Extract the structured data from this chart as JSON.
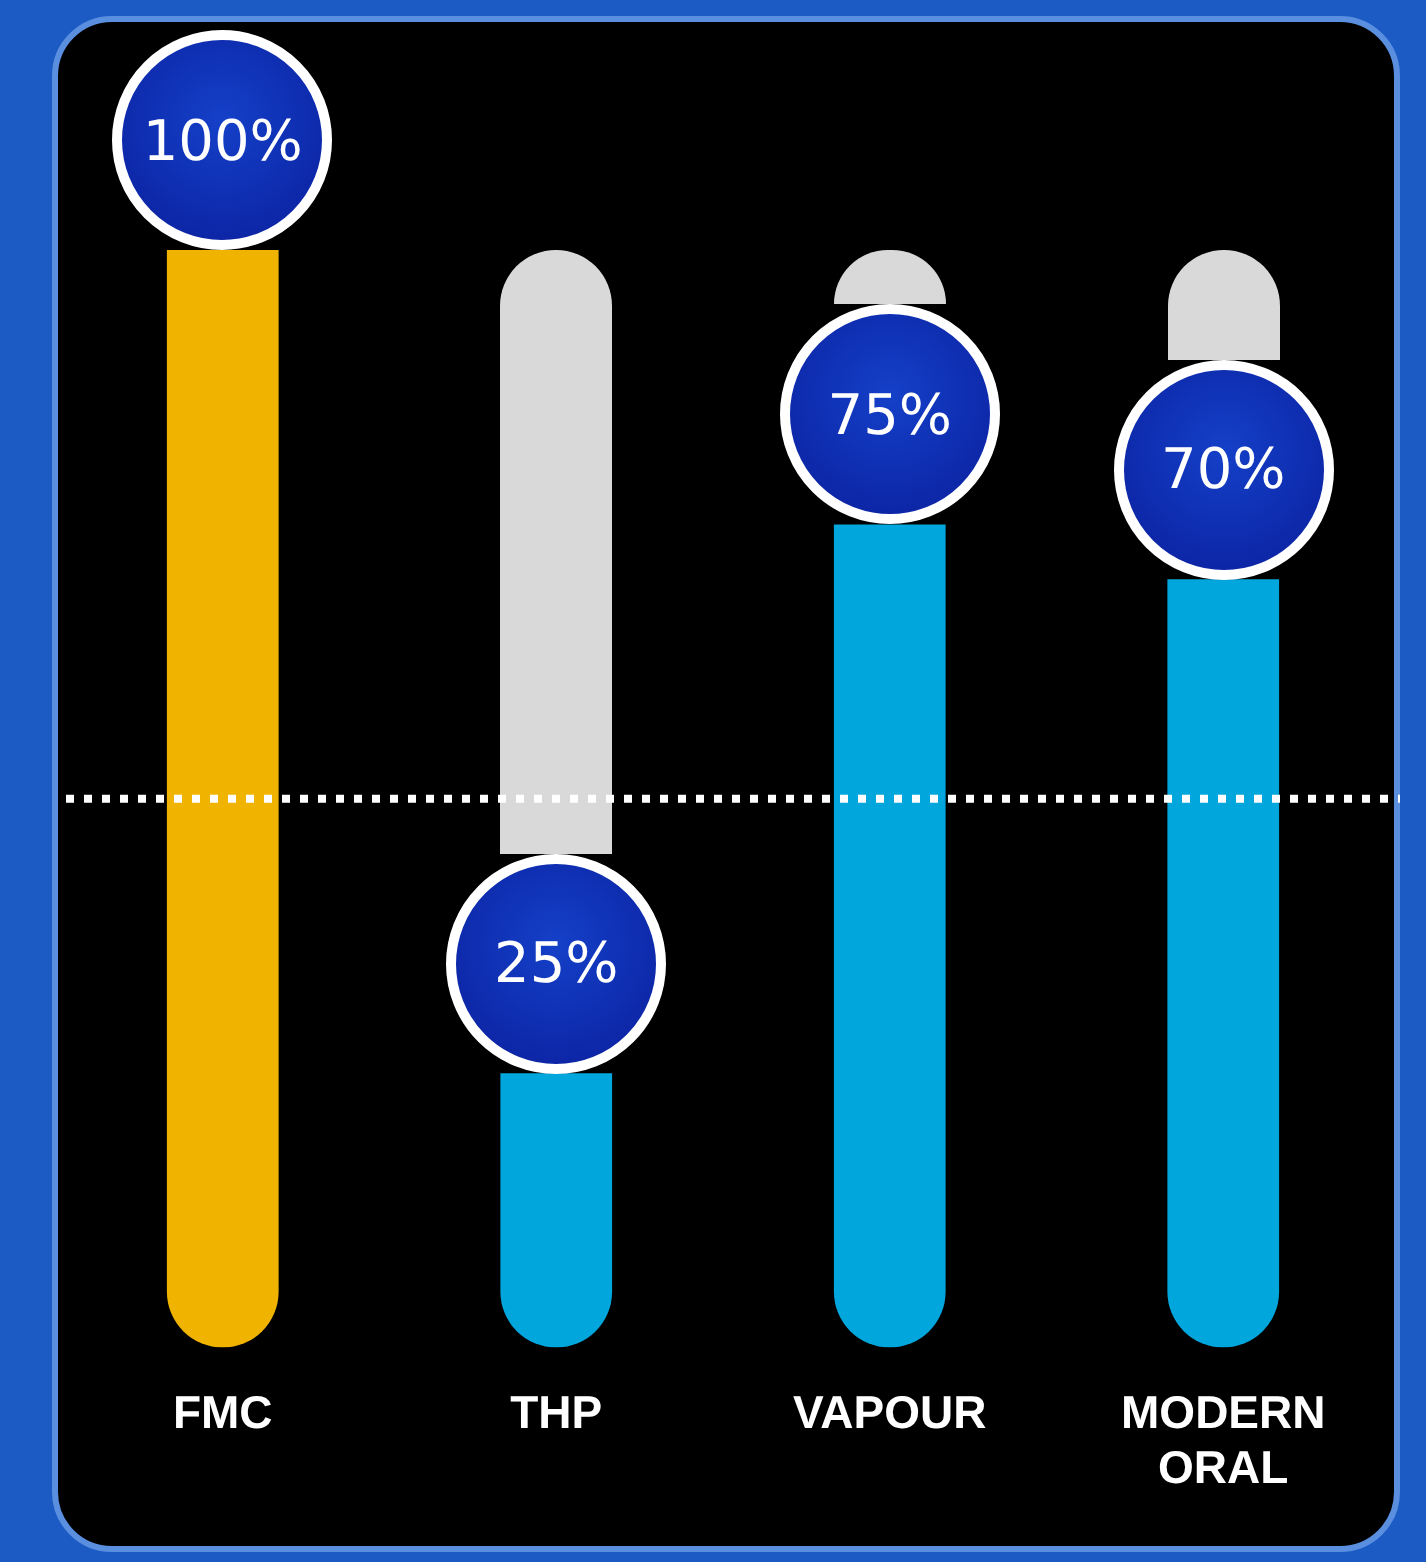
{
  "chart_data": {
    "type": "bar",
    "categories": [
      "FMC",
      "THP",
      "VAPOUR",
      "MODERN ORAL"
    ],
    "values": [
      100,
      25,
      75,
      70
    ],
    "colors": [
      "#f0b400",
      "#00a6dc",
      "#00a6dc",
      "#00a6dc"
    ],
    "tick_labels": "x",
    "grid": false,
    "legend": false,
    "data_labels": true,
    "value_labels": [
      "100%",
      "25%",
      "75%",
      "70%"
    ],
    "ref_lines": [
      {
        "axis": "y",
        "value": 50,
        "color": "#ffffff",
        "line_style": "dotted"
      }
    ]
  }
}
